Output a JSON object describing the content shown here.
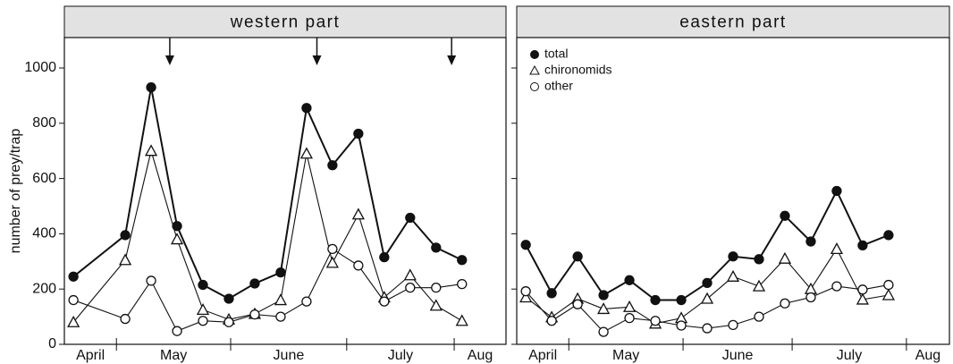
{
  "chart_data": [
    {
      "type": "line",
      "title": "western part",
      "ylabel": "number of prey/trap",
      "xlim": [
        -0.35,
        16.7
      ],
      "ylim": [
        0,
        1110
      ],
      "yticks": [
        0,
        200,
        400,
        600,
        800,
        1000
      ],
      "ytick_labels": true,
      "month_ticks": [
        1.66,
        6.07,
        10.55,
        14.7
      ],
      "month_labels": [
        "April",
        "May",
        "June",
        "July",
        "Aug"
      ],
      "arrows": [
        3.72,
        9.4,
        14.6
      ],
      "x": [
        0,
        2,
        3,
        4,
        5,
        6,
        7,
        8,
        9,
        10,
        11,
        12,
        13,
        14,
        15
      ],
      "series": [
        {
          "name": "total",
          "color": "#111111",
          "marker": "filled-circle",
          "values": [
            245,
            395,
            930,
            428,
            215,
            165,
            220,
            260,
            855,
            648,
            762,
            315,
            458,
            350,
            305
          ]
        },
        {
          "name": "chironomids",
          "color": "#111111",
          "marker": "triangle",
          "values": [
            80,
            305,
            700,
            380,
            125,
            90,
            110,
            160,
            690,
            295,
            470,
            170,
            250,
            140,
            85
          ]
        },
        {
          "name": "other",
          "color": "#111111",
          "marker": "open-circle",
          "values": [
            160,
            92,
            230,
            48,
            85,
            80,
            108,
            100,
            155,
            345,
            285,
            155,
            205,
            205,
            218
          ]
        }
      ]
    },
    {
      "type": "line",
      "title": "eastern part",
      "xlim": [
        -0.35,
        16.35
      ],
      "ylim": [
        0,
        1110
      ],
      "yticks": [
        0,
        200,
        400,
        600,
        800,
        1000
      ],
      "ytick_labels": false,
      "month_ticks": [
        1.66,
        6.07,
        10.28,
        14.69
      ],
      "month_labels": [
        "April",
        "May",
        "June",
        "July",
        "Aug"
      ],
      "legend": "top-left",
      "x": [
        0,
        1,
        2,
        3,
        4,
        5,
        6,
        7,
        8,
        9,
        10,
        11,
        12,
        13,
        14
      ],
      "series": [
        {
          "name": "total",
          "color": "#111111",
          "marker": "filled-circle",
          "values": [
            360,
            185,
            318,
            178,
            232,
            160,
            160,
            222,
            318,
            308,
            465,
            372,
            555,
            358,
            395
          ]
        },
        {
          "name": "chironomids",
          "color": "#111111",
          "marker": "triangle",
          "values": [
            170,
            98,
            165,
            128,
            135,
            75,
            95,
            165,
            245,
            210,
            310,
            200,
            345,
            162,
            178
          ]
        },
        {
          "name": "other",
          "color": "#111111",
          "marker": "open-circle",
          "values": [
            192,
            85,
            145,
            45,
            95,
            85,
            68,
            58,
            70,
            100,
            148,
            170,
            210,
            198,
            215
          ]
        }
      ]
    }
  ]
}
